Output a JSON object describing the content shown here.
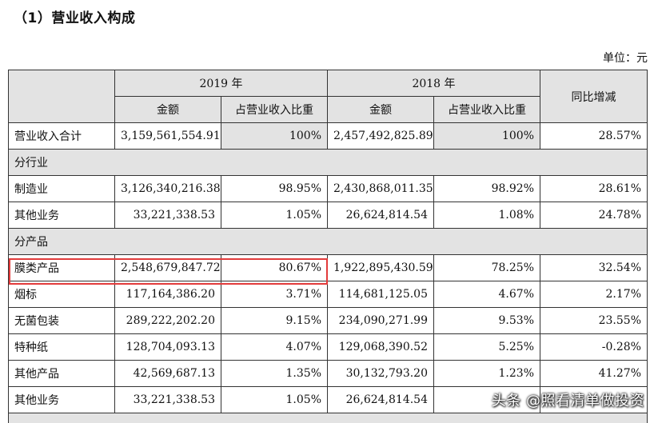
{
  "section_title": "（1）营业收入构成",
  "unit_label": "单位：元",
  "table": {
    "group_headers": {
      "year_2019": "2019 年",
      "year_2018": "2018 年",
      "yoy": "同比增减"
    },
    "sub_headers": {
      "amount_2019": "金额",
      "share_2019": "占营业收入比重",
      "amount_2018": "金额",
      "share_2018": "占营业收入比重"
    },
    "total_row": {
      "label": "营业收入合计",
      "amount_2019": "3,159,561,554.91",
      "share_2019": "100%",
      "amount_2018": "2,457,492,825.89",
      "share_2018": "100%",
      "yoy": "28.57%"
    },
    "section_by_industry": "分行业",
    "industry_rows": [
      {
        "label": "制造业",
        "amount_2019": "3,126,340,216.38",
        "share_2019": "98.95%",
        "amount_2018": "2,430,868,011.35",
        "share_2018": "98.92%",
        "yoy": "28.61%"
      },
      {
        "label": "其他业务",
        "amount_2019": "33,221,338.53",
        "share_2019": "1.05%",
        "amount_2018": "26,624,814.54",
        "share_2018": "1.08%",
        "yoy": "24.78%"
      }
    ],
    "section_by_product": "分产品",
    "product_rows": [
      {
        "label": "膜类产品",
        "amount_2019": "2,548,679,847.72",
        "share_2019": "80.67%",
        "amount_2018": "1,922,895,430.59",
        "share_2018": "78.25%",
        "yoy": "32.54%"
      },
      {
        "label": "烟标",
        "amount_2019": "117,164,386.20",
        "share_2019": "3.71%",
        "amount_2018": "114,681,125.05",
        "share_2018": "4.67%",
        "yoy": "2.17%"
      },
      {
        "label": "无菌包装",
        "amount_2019": "289,222,202.20",
        "share_2019": "9.15%",
        "amount_2018": "234,090,271.99",
        "share_2018": "9.53%",
        "yoy": "23.55%"
      },
      {
        "label": "特种纸",
        "amount_2019": "128,704,093.13",
        "share_2019": "4.07%",
        "amount_2018": "129,068,390.52",
        "share_2018": "5.25%",
        "yoy": "-0.28%"
      },
      {
        "label": "其他产品",
        "amount_2019": "42,569,687.13",
        "share_2019": "1.35%",
        "amount_2018": "30,132,793.20",
        "share_2018": "1.23%",
        "yoy": "41.27%"
      },
      {
        "label": "其他业务",
        "amount_2019": "33,221,338.53",
        "share_2019": "1.05%",
        "amount_2018": "26,624,814.54",
        "share_2018": "",
        "yoy": ""
      }
    ]
  },
  "highlight_color": "#e23b3b",
  "shade_color": "#e3e3e3",
  "watermark": "头条 @照看清单做投资"
}
